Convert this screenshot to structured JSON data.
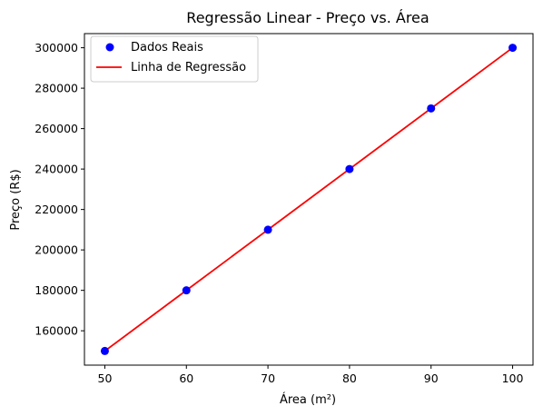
{
  "chart_data": {
    "type": "scatter",
    "title": "Regressão Linear - Preço vs. Área",
    "xlabel": "Área (m²)",
    "ylabel": "Preço (R$)",
    "xlim": [
      47.5,
      102.5
    ],
    "ylim": [
      143000,
      307000
    ],
    "x_ticks": [
      50,
      60,
      70,
      80,
      90,
      100
    ],
    "y_ticks": [
      160000,
      180000,
      200000,
      220000,
      240000,
      260000,
      280000,
      300000
    ],
    "grid": false,
    "legend_position": "top-left",
    "series": [
      {
        "name": "Dados Reais",
        "kind": "scatter",
        "color": "#0000ff",
        "x": [
          50,
          60,
          70,
          80,
          90,
          100
        ],
        "y": [
          150000,
          180000,
          210000,
          240000,
          270000,
          300000
        ]
      },
      {
        "name": "Linha de Regressão",
        "kind": "line",
        "color": "#ff0000",
        "x": [
          50,
          60,
          70,
          80,
          90,
          100
        ],
        "y": [
          150000,
          180000,
          210000,
          240000,
          270000,
          300000
        ]
      }
    ]
  }
}
